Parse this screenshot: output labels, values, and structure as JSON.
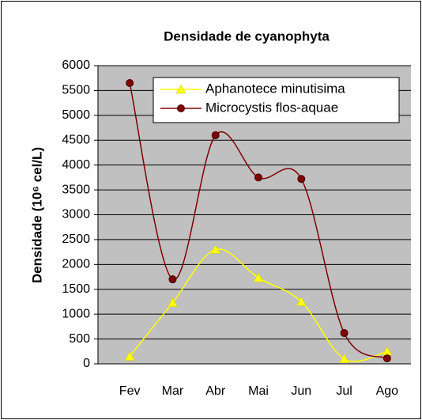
{
  "chart_data": {
    "type": "line",
    "title": "Densidade de cyanophyta",
    "y_label": "Densidade (10⁶ cel/L)",
    "categories": [
      "Fev",
      "Mar",
      "Abr",
      "Mai",
      "Jun",
      "Jul",
      "Ago"
    ],
    "series": [
      {
        "name": "Aphanotece minutisima",
        "color": "#ffff00",
        "marker": "triangle",
        "values": [
          150,
          1230,
          2300,
          1730,
          1250,
          100,
          250
        ]
      },
      {
        "name": "Microcystis flos-aquae",
        "color": "#800000",
        "marker": "circle",
        "values": [
          5650,
          1700,
          4600,
          3750,
          3720,
          620,
          110
        ]
      }
    ],
    "ylim": [
      0,
      6000
    ],
    "yticks": [
      0,
      500,
      1000,
      1500,
      2000,
      2500,
      3000,
      3500,
      4000,
      4500,
      5000,
      5500,
      6000
    ],
    "grid": true,
    "smooth": true
  }
}
